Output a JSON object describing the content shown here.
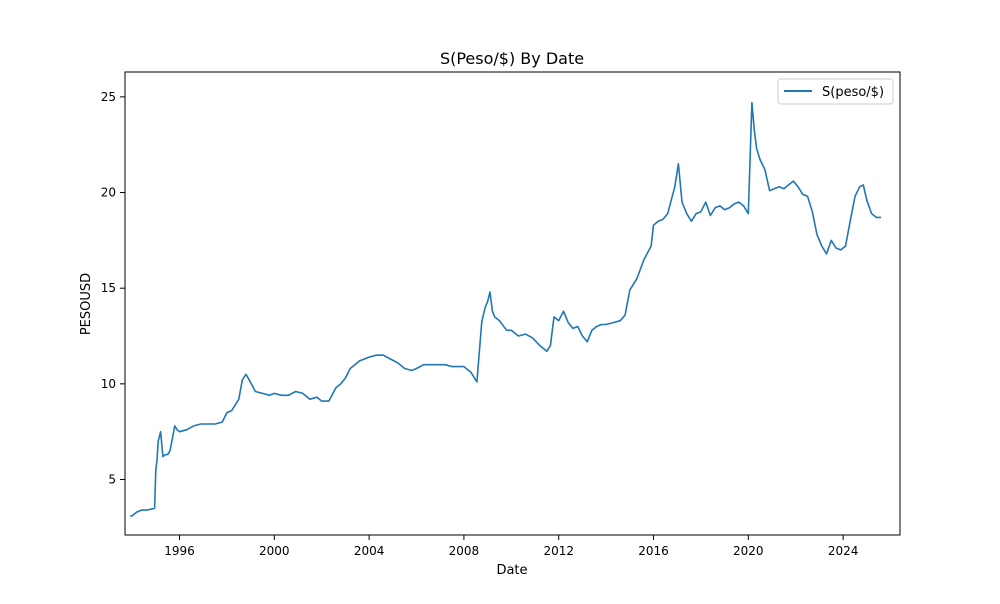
{
  "chart_data": {
    "type": "line",
    "title": "S(Peso/$) By Date",
    "xlabel": "Date",
    "ylabel": "PESOUSD",
    "xlim": [
      1993.7,
      2026.4
    ],
    "ylim": [
      2.1,
      26.3
    ],
    "xticks": [
      1996,
      2000,
      2004,
      2008,
      2012,
      2016,
      2020,
      2024
    ],
    "yticks": [
      5,
      10,
      15,
      20,
      25
    ],
    "grid": false,
    "legend": {
      "position": "top-right",
      "entries": [
        "S(peso/$)"
      ]
    },
    "colors": {
      "series": "#1f77b4",
      "axes": "#000000",
      "background": "#ffffff"
    },
    "series": [
      {
        "name": "S(peso/$)",
        "x": [
          1993.92,
          1994.0,
          1994.2,
          1994.4,
          1994.6,
          1994.8,
          1994.95,
          1995.0,
          1995.05,
          1995.1,
          1995.2,
          1995.3,
          1995.4,
          1995.5,
          1995.6,
          1995.8,
          1995.9,
          1996.0,
          1996.3,
          1996.6,
          1996.9,
          1997.2,
          1997.5,
          1997.8,
          1998.0,
          1998.2,
          1998.5,
          1998.65,
          1998.8,
          1998.9,
          1999.2,
          1999.5,
          1999.8,
          2000.0,
          2000.3,
          2000.6,
          2000.9,
          2001.2,
          2001.5,
          2001.8,
          2002.0,
          2002.3,
          2002.6,
          2002.8,
          2003.0,
          2003.2,
          2003.4,
          2003.6,
          2003.8,
          2004.0,
          2004.3,
          2004.6,
          2004.9,
          2005.2,
          2005.5,
          2005.8,
          2006.0,
          2006.3,
          2006.6,
          2006.9,
          2007.2,
          2007.5,
          2007.8,
          2008.0,
          2008.3,
          2008.55,
          2008.75,
          2008.8,
          2008.9,
          2009.0,
          2009.1,
          2009.2,
          2009.3,
          2009.5,
          2009.8,
          2010.0,
          2010.3,
          2010.6,
          2010.9,
          2011.2,
          2011.5,
          2011.65,
          2011.8,
          2012.0,
          2012.2,
          2012.4,
          2012.6,
          2012.8,
          2013.0,
          2013.2,
          2013.4,
          2013.6,
          2013.8,
          2014.0,
          2014.3,
          2014.6,
          2014.8,
          2015.0,
          2015.3,
          2015.6,
          2015.9,
          2016.0,
          2016.2,
          2016.4,
          2016.6,
          2016.9,
          2017.05,
          2017.2,
          2017.4,
          2017.6,
          2017.8,
          2018.0,
          2018.2,
          2018.4,
          2018.6,
          2018.8,
          2019.0,
          2019.2,
          2019.4,
          2019.6,
          2019.8,
          2020.0,
          2020.15,
          2020.25,
          2020.35,
          2020.5,
          2020.7,
          2020.9,
          2021.1,
          2021.3,
          2021.5,
          2021.7,
          2021.9,
          2022.1,
          2022.3,
          2022.5,
          2022.7,
          2022.9,
          2023.1,
          2023.3,
          2023.5,
          2023.7,
          2023.9,
          2024.1,
          2024.3,
          2024.5,
          2024.7,
          2024.85,
          2025.0,
          2025.2,
          2025.4,
          2025.6
        ],
        "values": [
          3.1,
          3.1,
          3.3,
          3.4,
          3.4,
          3.45,
          3.5,
          5.5,
          6.0,
          7.0,
          7.5,
          6.2,
          6.3,
          6.3,
          6.5,
          7.8,
          7.6,
          7.5,
          7.6,
          7.8,
          7.9,
          7.9,
          7.9,
          8.0,
          8.5,
          8.6,
          9.2,
          10.2,
          10.5,
          10.3,
          9.6,
          9.5,
          9.4,
          9.5,
          9.4,
          9.4,
          9.6,
          9.5,
          9.2,
          9.3,
          9.1,
          9.1,
          9.8,
          10.0,
          10.3,
          10.8,
          11.0,
          11.2,
          11.3,
          11.4,
          11.5,
          11.5,
          11.3,
          11.1,
          10.8,
          10.7,
          10.8,
          11.0,
          11.0,
          11.0,
          11.0,
          10.9,
          10.9,
          10.9,
          10.6,
          10.1,
          13.2,
          13.5,
          14.0,
          14.3,
          14.8,
          13.8,
          13.5,
          13.3,
          12.8,
          12.8,
          12.5,
          12.6,
          12.4,
          12.0,
          11.7,
          12.0,
          13.5,
          13.3,
          13.8,
          13.2,
          12.9,
          13.0,
          12.5,
          12.2,
          12.8,
          13.0,
          13.1,
          13.1,
          13.2,
          13.3,
          13.6,
          14.9,
          15.5,
          16.5,
          17.2,
          18.3,
          18.5,
          18.6,
          18.9,
          20.3,
          21.5,
          19.5,
          18.9,
          18.5,
          18.9,
          19.0,
          19.5,
          18.8,
          19.2,
          19.3,
          19.1,
          19.2,
          19.4,
          19.5,
          19.3,
          18.9,
          24.7,
          23.3,
          22.3,
          21.7,
          21.2,
          20.1,
          20.2,
          20.3,
          20.2,
          20.4,
          20.6,
          20.3,
          19.9,
          19.8,
          19.0,
          17.8,
          17.2,
          16.8,
          17.5,
          17.1,
          17.0,
          17.2,
          18.5,
          19.8,
          20.3,
          20.4,
          19.6,
          18.9,
          18.7,
          18.7
        ]
      }
    ]
  }
}
